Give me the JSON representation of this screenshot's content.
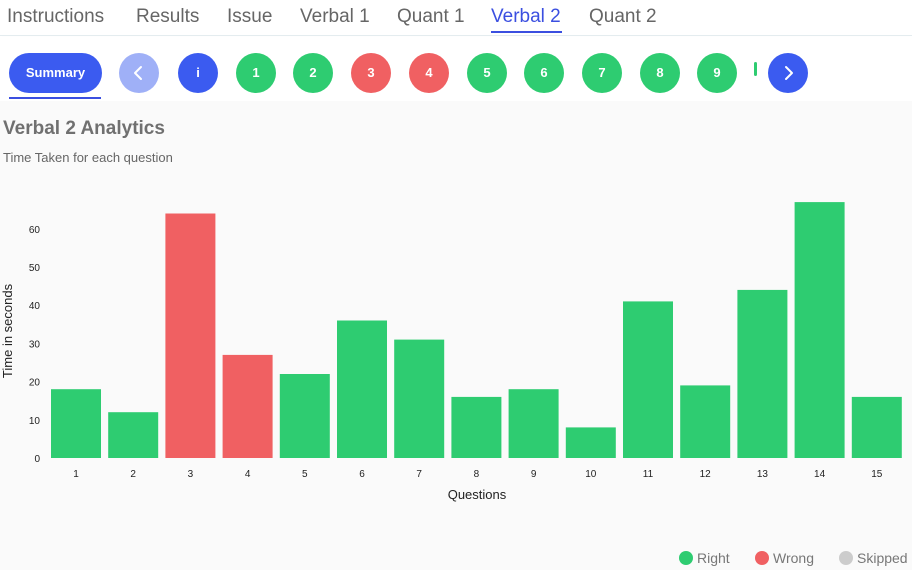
{
  "tabs": [
    {
      "label": "Instructions"
    },
    {
      "label": "Results"
    },
    {
      "label": "Issue"
    },
    {
      "label": "Verbal 1"
    },
    {
      "label": "Quant 1"
    },
    {
      "label": "Verbal 2"
    },
    {
      "label": "Quant 2"
    }
  ],
  "active_tab": "Verbal 2",
  "nav": {
    "summary_label": "Summary",
    "info_label": "i",
    "questions": [
      {
        "label": "1",
        "status": "right"
      },
      {
        "label": "2",
        "status": "right"
      },
      {
        "label": "3",
        "status": "wrong"
      },
      {
        "label": "4",
        "status": "wrong"
      },
      {
        "label": "5",
        "status": "right"
      },
      {
        "label": "6",
        "status": "right"
      },
      {
        "label": "7",
        "status": "right"
      },
      {
        "label": "8",
        "status": "right"
      },
      {
        "label": "9",
        "status": "right"
      }
    ]
  },
  "analytics": {
    "title": "Verbal 2 Analytics",
    "subtitle": "Time Taken for each question"
  },
  "colors": {
    "accent": "#3b5bf0",
    "right": "#2ecc71",
    "wrong": "#f06062",
    "skipped": "#cccccc"
  },
  "legend": [
    {
      "label": "Right",
      "status": "right"
    },
    {
      "label": "Wrong",
      "status": "wrong"
    },
    {
      "label": "Skipped",
      "status": "skipped"
    }
  ],
  "chart_data": {
    "type": "bar",
    "categories": [
      "1",
      "2",
      "3",
      "4",
      "5",
      "6",
      "7",
      "8",
      "9",
      "10",
      "11",
      "12",
      "13",
      "14",
      "15"
    ],
    "values": [
      18,
      12,
      64,
      27,
      22,
      36,
      31,
      16,
      18,
      8,
      41,
      19,
      44,
      67,
      16
    ],
    "status": [
      "right",
      "right",
      "wrong",
      "wrong",
      "right",
      "right",
      "right",
      "right",
      "right",
      "right",
      "right",
      "right",
      "right",
      "right",
      "right"
    ],
    "xlabel": "Questions",
    "ylabel": "Time in seconds",
    "yticks": [
      0,
      10,
      20,
      30,
      40,
      50,
      60
    ],
    "ylim": [
      0,
      67
    ],
    "grid": false,
    "legend_position": "bottom-right"
  }
}
